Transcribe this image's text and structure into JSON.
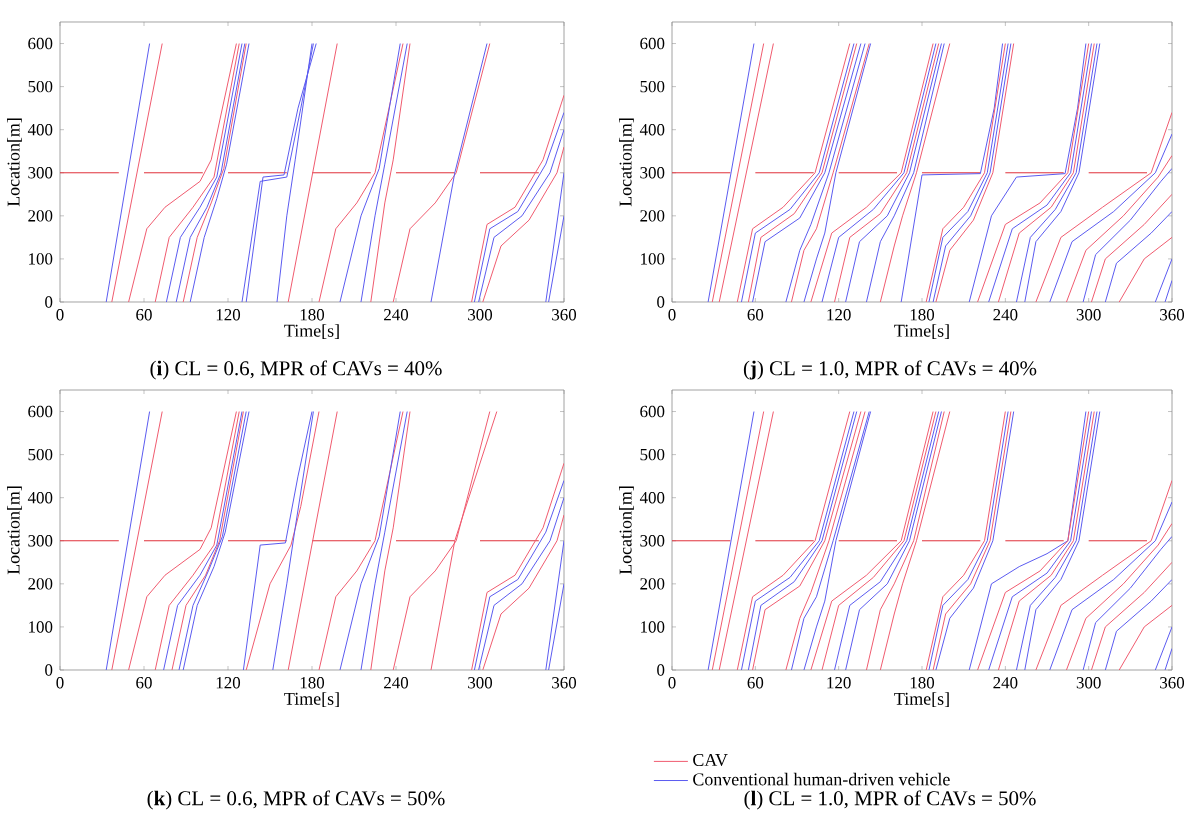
{
  "chart_data": [
    {
      "type": "line",
      "title": "(**i**) CL = 0.6, MPR of CAVs = 40%",
      "xlabel": "Time[s]",
      "ylabel": "Location[m]",
      "xlim": [
        0,
        360
      ],
      "ylim": [
        0,
        650
      ],
      "xticks": [
        0,
        60,
        120,
        180,
        240,
        300,
        360
      ],
      "yticks": [
        0,
        100,
        200,
        300,
        400,
        500,
        600
      ],
      "series": [
        {
          "color": "#e0303a",
          "x": [
            0,
            42,
            51,
            60,
            102,
            111,
            120,
            162,
            171,
            180,
            222,
            231,
            240,
            282,
            291,
            300,
            342
          ],
          "values": [
            300,
            300,
            null,
            300,
            300,
            null,
            300,
            300,
            null,
            300,
            300,
            null,
            300,
            300,
            null,
            300,
            300
          ]
        },
        {
          "color": "#5a5af0",
          "x": [
            33,
            64
          ],
          "values": [
            0,
            600
          ]
        },
        {
          "color": "#f05a6e",
          "x": [
            37,
            73
          ],
          "values": [
            0,
            600
          ]
        },
        {
          "color": "#f05a6e",
          "x": [
            49,
            62,
            75,
            100,
            108,
            126
          ],
          "values": [
            0,
            170,
            220,
            280,
            330,
            600
          ]
        },
        {
          "color": "#f05a6e",
          "x": [
            68,
            78,
            95,
            110,
            128
          ],
          "values": [
            0,
            150,
            220,
            290,
            600
          ]
        },
        {
          "color": "#5a5af0",
          "x": [
            76,
            86,
            100,
            112,
            130
          ],
          "values": [
            0,
            150,
            220,
            290,
            600
          ]
        },
        {
          "color": "#5a5af0",
          "x": [
            83,
            93,
            105,
            115,
            132
          ],
          "values": [
            0,
            150,
            220,
            300,
            600
          ]
        },
        {
          "color": "#f05a6e",
          "x": [
            88,
            98,
            108,
            117,
            133
          ],
          "values": [
            0,
            150,
            230,
            310,
            600
          ]
        },
        {
          "color": "#5a5af0",
          "x": [
            93,
            103,
            112,
            119,
            135
          ],
          "values": [
            0,
            150,
            240,
            320,
            600
          ]
        },
        {
          "color": "#5a5af0",
          "x": [
            130,
            143,
            162,
            172,
            181
          ],
          "values": [
            0,
            280,
            290,
            450,
            600
          ]
        },
        {
          "color": "#5a5af0",
          "x": [
            133,
            145,
            160,
            170,
            183
          ],
          "values": [
            0,
            290,
            295,
            450,
            600
          ]
        },
        {
          "color": "#5a5af0",
          "x": [
            155,
            162,
            168,
            180
          ],
          "values": [
            0,
            200,
            330,
            600
          ]
        },
        {
          "color": "#f05a6e",
          "x": [
            163,
            198
          ],
          "values": [
            0,
            600
          ]
        },
        {
          "color": "#f05a6e",
          "x": [
            185,
            197,
            212,
            225,
            245
          ],
          "values": [
            0,
            170,
            230,
            300,
            600
          ]
        },
        {
          "color": "#5a5af0",
          "x": [
            200,
            215,
            228,
            243
          ],
          "values": [
            0,
            200,
            310,
            600
          ]
        },
        {
          "color": "#5a5af0",
          "x": [
            215,
            225,
            232,
            248
          ],
          "values": [
            0,
            200,
            320,
            600
          ]
        },
        {
          "color": "#f05a6e",
          "x": [
            222,
            232,
            238,
            250
          ],
          "values": [
            0,
            230,
            330,
            600
          ]
        },
        {
          "color": "#f05a6e",
          "x": [
            238,
            250,
            268,
            283,
            307
          ],
          "values": [
            0,
            170,
            230,
            300,
            600
          ]
        },
        {
          "color": "#5a5af0",
          "x": [
            265,
            282,
            305
          ],
          "values": [
            0,
            300,
            600
          ]
        },
        {
          "color": "#f05a6e",
          "x": [
            294,
            305,
            325,
            345,
            360
          ],
          "values": [
            0,
            180,
            220,
            330,
            480
          ]
        },
        {
          "color": "#5a5af0",
          "x": [
            296,
            307,
            327,
            347,
            360
          ],
          "values": [
            0,
            170,
            210,
            320,
            440
          ]
        },
        {
          "color": "#5a5af0",
          "x": [
            299,
            310,
            330,
            350,
            360
          ],
          "values": [
            0,
            150,
            200,
            300,
            400
          ]
        },
        {
          "color": "#f05a6e",
          "x": [
            302,
            315,
            335,
            355,
            360
          ],
          "values": [
            0,
            130,
            190,
            300,
            360
          ]
        },
        {
          "color": "#5a5af0",
          "x": [
            347,
            360
          ],
          "values": [
            0,
            300
          ]
        },
        {
          "color": "#5a5af0",
          "x": [
            349,
            360
          ],
          "values": [
            0,
            200
          ]
        }
      ]
    },
    {
      "type": "line",
      "title": "(**j**) CL = 1.0, MPR of CAVs = 40%",
      "xlabel": "Time[s]",
      "ylabel": "Location[m]",
      "xlim": [
        0,
        360
      ],
      "ylim": [
        0,
        650
      ],
      "xticks": [
        0,
        60,
        120,
        180,
        240,
        300,
        360
      ],
      "yticks": [
        0,
        100,
        200,
        300,
        400,
        500,
        600
      ],
      "series": [
        {
          "color": "#e0303a",
          "x": [
            0,
            42,
            51,
            60,
            102,
            111,
            120,
            162,
            171,
            180,
            222,
            231,
            240,
            282,
            291,
            300,
            342
          ],
          "values": [
            300,
            300,
            null,
            300,
            300,
            null,
            300,
            300,
            null,
            300,
            300,
            null,
            300,
            300,
            null,
            300,
            300
          ]
        },
        {
          "color": "#5a5af0",
          "x": [
            26,
            59
          ],
          "values": [
            0,
            600
          ]
        },
        {
          "color": "#f05a6e",
          "x": [
            29,
            66
          ],
          "values": [
            0,
            600
          ]
        },
        {
          "color": "#f05a6e",
          "x": [
            34,
            73
          ],
          "values": [
            0,
            600
          ]
        },
        {
          "color": "#f05a6e",
          "x": [
            47,
            58,
            80,
            103,
            128
          ],
          "values": [
            0,
            170,
            220,
            300,
            600
          ]
        },
        {
          "color": "#5a5af0",
          "x": [
            50,
            60,
            85,
            106,
            131
          ],
          "values": [
            0,
            160,
            215,
            300,
            600
          ]
        },
        {
          "color": "#f05a6e",
          "x": [
            55,
            64,
            88,
            108,
            133
          ],
          "values": [
            0,
            150,
            205,
            300,
            600
          ]
        },
        {
          "color": "#5a5af0",
          "x": [
            58,
            67,
            92,
            110,
            136
          ],
          "values": [
            0,
            140,
            195,
            300,
            600
          ]
        },
        {
          "color": "#5a5af0",
          "x": [
            82,
            92,
            100,
            113,
            139
          ],
          "values": [
            0,
            120,
            180,
            300,
            600
          ]
        },
        {
          "color": "#f05a6e",
          "x": [
            86,
            95,
            104,
            116,
            142
          ],
          "values": [
            0,
            120,
            170,
            300,
            600
          ]
        },
        {
          "color": "#5a5af0",
          "x": [
            95,
            104,
            110,
            118,
            143
          ],
          "values": [
            0,
            100,
            160,
            300,
            600
          ]
        },
        {
          "color": "#f05a6e",
          "x": [
            100,
            115,
            140,
            165,
            188
          ],
          "values": [
            0,
            160,
            220,
            300,
            600
          ]
        },
        {
          "color": "#5a5af0",
          "x": [
            108,
            120,
            145,
            167,
            190
          ],
          "values": [
            0,
            150,
            215,
            300,
            600
          ]
        },
        {
          "color": "#f05a6e",
          "x": [
            117,
            128,
            150,
            169,
            192
          ],
          "values": [
            0,
            150,
            205,
            300,
            600
          ]
        },
        {
          "color": "#5a5af0",
          "x": [
            125,
            135,
            155,
            171,
            194
          ],
          "values": [
            0,
            140,
            200,
            300,
            600
          ]
        },
        {
          "color": "#5a5af0",
          "x": [
            140,
            150,
            160,
            174,
            196
          ],
          "values": [
            0,
            140,
            200,
            300,
            600
          ]
        },
        {
          "color": "#f05a6e",
          "x": [
            150,
            160,
            166,
            176,
            200
          ],
          "values": [
            0,
            130,
            200,
            300,
            600
          ]
        },
        {
          "color": "#5a5af0",
          "x": [
            165,
            180,
            222,
            232,
            238
          ],
          "values": [
            0,
            295,
            298,
            450,
            600
          ]
        },
        {
          "color": "#f05a6e",
          "x": [
            183,
            195,
            210,
            225,
            240
          ],
          "values": [
            0,
            170,
            220,
            300,
            600
          ]
        },
        {
          "color": "#5a5af0",
          "x": [
            185,
            195,
            213,
            227,
            242
          ],
          "values": [
            0,
            150,
            210,
            300,
            600
          ]
        },
        {
          "color": "#5a5af0",
          "x": [
            188,
            197,
            215,
            229,
            244
          ],
          "values": [
            0,
            130,
            200,
            300,
            600
          ]
        },
        {
          "color": "#f05a6e",
          "x": [
            190,
            200,
            217,
            231,
            246
          ],
          "values": [
            0,
            120,
            190,
            300,
            600
          ]
        },
        {
          "color": "#5a5af0",
          "x": [
            214,
            230,
            248,
            283,
            292,
            298
          ],
          "values": [
            0,
            200,
            290,
            298,
            450,
            600
          ]
        },
        {
          "color": "#f05a6e",
          "x": [
            220,
            240,
            265,
            285,
            300
          ],
          "values": [
            0,
            180,
            230,
            300,
            600
          ]
        },
        {
          "color": "#5a5af0",
          "x": [
            228,
            245,
            270,
            287,
            302
          ],
          "values": [
            0,
            170,
            225,
            300,
            600
          ]
        },
        {
          "color": "#f05a6e",
          "x": [
            235,
            250,
            273,
            289,
            304
          ],
          "values": [
            0,
            160,
            220,
            300,
            600
          ]
        },
        {
          "color": "#5a5af0",
          "x": [
            248,
            258,
            276,
            291,
            306
          ],
          "values": [
            0,
            150,
            215,
            300,
            600
          ]
        },
        {
          "color": "#5a5af0",
          "x": [
            254,
            262,
            280,
            293,
            308
          ],
          "values": [
            0,
            140,
            210,
            300,
            600
          ]
        },
        {
          "color": "#f05a6e",
          "x": [
            262,
            280,
            310,
            345,
            360
          ],
          "values": [
            0,
            150,
            220,
            300,
            440
          ]
        },
        {
          "color": "#5a5af0",
          "x": [
            272,
            288,
            318,
            348,
            360
          ],
          "values": [
            0,
            140,
            210,
            300,
            390
          ]
        },
        {
          "color": "#f05a6e",
          "x": [
            284,
            298,
            325,
            350,
            360
          ],
          "values": [
            0,
            120,
            200,
            290,
            340
          ]
        },
        {
          "color": "#5a5af0",
          "x": [
            296,
            305,
            330,
            352,
            360
          ],
          "values": [
            0,
            110,
            190,
            280,
            310
          ]
        },
        {
          "color": "#f05a6e",
          "x": [
            302,
            312,
            340,
            360
          ],
          "values": [
            0,
            100,
            180,
            250
          ]
        },
        {
          "color": "#5a5af0",
          "x": [
            312,
            320,
            345,
            360
          ],
          "values": [
            0,
            90,
            160,
            210
          ]
        },
        {
          "color": "#f05a6e",
          "x": [
            322,
            340,
            360
          ],
          "values": [
            0,
            100,
            150
          ]
        },
        {
          "color": "#5a5af0",
          "x": [
            348,
            360
          ],
          "values": [
            0,
            100
          ]
        },
        {
          "color": "#5a5af0",
          "x": [
            355,
            360
          ],
          "values": [
            0,
            50
          ]
        }
      ]
    },
    {
      "type": "line",
      "title": "(**k**) CL = 0.6, MPR of CAVs = 50%",
      "xlabel": "Time[s]",
      "ylabel": "Location[m]",
      "xlim": [
        0,
        360
      ],
      "ylim": [
        0,
        650
      ],
      "xticks": [
        0,
        60,
        120,
        180,
        240,
        300,
        360
      ],
      "yticks": [
        0,
        100,
        200,
        300,
        400,
        500,
        600
      ],
      "series": [
        {
          "color": "#e0303a",
          "x": [
            0,
            42,
            51,
            60,
            102,
            111,
            120,
            162,
            171,
            180,
            222,
            231,
            240,
            282,
            291,
            300,
            342
          ],
          "values": [
            300,
            300,
            null,
            300,
            300,
            null,
            300,
            300,
            null,
            300,
            300,
            null,
            300,
            300,
            null,
            300,
            300
          ]
        },
        {
          "color": "#5a5af0",
          "x": [
            33,
            64
          ],
          "values": [
            0,
            600
          ]
        },
        {
          "color": "#f05a6e",
          "x": [
            37,
            73
          ],
          "values": [
            0,
            600
          ]
        },
        {
          "color": "#f05a6e",
          "x": [
            49,
            62,
            75,
            100,
            108,
            126
          ],
          "values": [
            0,
            170,
            220,
            280,
            330,
            600
          ]
        },
        {
          "color": "#f05a6e",
          "x": [
            68,
            78,
            95,
            110,
            128
          ],
          "values": [
            0,
            150,
            220,
            290,
            600
          ]
        },
        {
          "color": "#5a5af0",
          "x": [
            74,
            84,
            100,
            112,
            130
          ],
          "values": [
            0,
            150,
            220,
            290,
            600
          ]
        },
        {
          "color": "#f05a6e",
          "x": [
            80,
            90,
            104,
            114,
            131
          ],
          "values": [
            0,
            150,
            220,
            300,
            600
          ]
        },
        {
          "color": "#5a5af0",
          "x": [
            85,
            95,
            106,
            116,
            133
          ],
          "values": [
            0,
            150,
            230,
            310,
            600
          ]
        },
        {
          "color": "#5a5af0",
          "x": [
            88,
            98,
            110,
            118,
            135
          ],
          "values": [
            0,
            150,
            240,
            320,
            600
          ]
        },
        {
          "color": "#5a5af0",
          "x": [
            131,
            143,
            161,
            170,
            180
          ],
          "values": [
            0,
            290,
            295,
            450,
            600
          ]
        },
        {
          "color": "#f05a6e",
          "x": [
            133,
            150,
            165,
            172,
            185
          ],
          "values": [
            0,
            200,
            290,
            380,
            600
          ]
        },
        {
          "color": "#5a5af0",
          "x": [
            152,
            162,
            168,
            181
          ],
          "values": [
            0,
            200,
            330,
            600
          ]
        },
        {
          "color": "#f05a6e",
          "x": [
            163,
            198
          ],
          "values": [
            0,
            600
          ]
        },
        {
          "color": "#f05a6e",
          "x": [
            185,
            197,
            212,
            225,
            245
          ],
          "values": [
            0,
            170,
            230,
            300,
            600
          ]
        },
        {
          "color": "#5a5af0",
          "x": [
            200,
            215,
            228,
            243
          ],
          "values": [
            0,
            200,
            310,
            600
          ]
        },
        {
          "color": "#5a5af0",
          "x": [
            215,
            225,
            232,
            248
          ],
          "values": [
            0,
            200,
            320,
            600
          ]
        },
        {
          "color": "#f05a6e",
          "x": [
            222,
            232,
            238,
            250
          ],
          "values": [
            0,
            230,
            330,
            600
          ]
        },
        {
          "color": "#f05a6e",
          "x": [
            238,
            250,
            268,
            283,
            307
          ],
          "values": [
            0,
            170,
            230,
            300,
            600
          ]
        },
        {
          "color": "#f05a6e",
          "x": [
            265,
            282,
            312
          ],
          "values": [
            0,
            300,
            600
          ]
        },
        {
          "color": "#f05a6e",
          "x": [
            294,
            305,
            325,
            345,
            360
          ],
          "values": [
            0,
            180,
            220,
            330,
            480
          ]
        },
        {
          "color": "#5a5af0",
          "x": [
            296,
            307,
            327,
            347,
            360
          ],
          "values": [
            0,
            170,
            210,
            320,
            440
          ]
        },
        {
          "color": "#5a5af0",
          "x": [
            299,
            310,
            330,
            350,
            360
          ],
          "values": [
            0,
            150,
            200,
            300,
            400
          ]
        },
        {
          "color": "#f05a6e",
          "x": [
            302,
            315,
            335,
            355,
            360
          ],
          "values": [
            0,
            130,
            190,
            300,
            360
          ]
        },
        {
          "color": "#5a5af0",
          "x": [
            347,
            360
          ],
          "values": [
            0,
            300
          ]
        },
        {
          "color": "#5a5af0",
          "x": [
            349,
            360
          ],
          "values": [
            0,
            200
          ]
        }
      ]
    },
    {
      "type": "line",
      "title": "(**l**) CL = 1.0, MPR of CAVs = 50%",
      "xlabel": "Time[s]",
      "ylabel": "Location[m]",
      "xlim": [
        0,
        360
      ],
      "ylim": [
        0,
        650
      ],
      "xticks": [
        0,
        60,
        120,
        180,
        240,
        300,
        360
      ],
      "yticks": [
        0,
        100,
        200,
        300,
        400,
        500,
        600
      ],
      "legend": "bottom",
      "series": [
        {
          "color": "#e0303a",
          "x": [
            0,
            42,
            51,
            60,
            102,
            111,
            120,
            162,
            171,
            180,
            222,
            231,
            240,
            282,
            291,
            300,
            342
          ],
          "values": [
            300,
            300,
            null,
            300,
            300,
            null,
            300,
            300,
            null,
            300,
            300,
            null,
            300,
            300,
            null,
            300,
            300
          ]
        },
        {
          "color": "#5a5af0",
          "x": [
            26,
            59
          ],
          "values": [
            0,
            600
          ]
        },
        {
          "name": "CAV",
          "color": "#f05a6e",
          "x": [
            29,
            66
          ],
          "values": [
            0,
            600
          ]
        },
        {
          "color": "#f05a6e",
          "x": [
            34,
            73
          ],
          "values": [
            0,
            600
          ]
        },
        {
          "color": "#f05a6e",
          "x": [
            47,
            58,
            80,
            103,
            128
          ],
          "values": [
            0,
            170,
            220,
            300,
            600
          ]
        },
        {
          "name": "Conventional human-driven vehicle",
          "color": "#5a5af0",
          "x": [
            50,
            60,
            85,
            106,
            131
          ],
          "values": [
            0,
            160,
            215,
            300,
            600
          ]
        },
        {
          "color": "#5a5af0",
          "x": [
            55,
            64,
            88,
            108,
            133
          ],
          "values": [
            0,
            150,
            205,
            300,
            600
          ]
        },
        {
          "color": "#f05a6e",
          "x": [
            58,
            67,
            92,
            110,
            136
          ],
          "values": [
            0,
            140,
            195,
            300,
            600
          ]
        },
        {
          "color": "#f05a6e",
          "x": [
            82,
            92,
            100,
            113,
            139
          ],
          "values": [
            0,
            120,
            180,
            300,
            600
          ]
        },
        {
          "color": "#5a5af0",
          "x": [
            86,
            95,
            104,
            116,
            142
          ],
          "values": [
            0,
            120,
            170,
            300,
            600
          ]
        },
        {
          "color": "#5a5af0",
          "x": [
            95,
            104,
            110,
            118,
            143
          ],
          "values": [
            0,
            100,
            160,
            300,
            600
          ]
        },
        {
          "color": "#f05a6e",
          "x": [
            100,
            115,
            140,
            165,
            188
          ],
          "values": [
            0,
            160,
            220,
            300,
            600
          ]
        },
        {
          "color": "#f05a6e",
          "x": [
            108,
            120,
            145,
            167,
            190
          ],
          "values": [
            0,
            150,
            215,
            300,
            600
          ]
        },
        {
          "color": "#5a5af0",
          "x": [
            117,
            128,
            150,
            169,
            192
          ],
          "values": [
            0,
            150,
            205,
            300,
            600
          ]
        },
        {
          "color": "#5a5af0",
          "x": [
            125,
            135,
            155,
            171,
            194
          ],
          "values": [
            0,
            140,
            200,
            300,
            600
          ]
        },
        {
          "color": "#f05a6e",
          "x": [
            140,
            150,
            160,
            174,
            196
          ],
          "values": [
            0,
            140,
            200,
            300,
            600
          ]
        },
        {
          "color": "#f05a6e",
          "x": [
            150,
            160,
            166,
            176,
            200
          ],
          "values": [
            0,
            130,
            200,
            300,
            600
          ]
        },
        {
          "color": "#f05a6e",
          "x": [
            183,
            195,
            210,
            225,
            240
          ],
          "values": [
            0,
            170,
            220,
            300,
            600
          ]
        },
        {
          "color": "#5a5af0",
          "x": [
            185,
            195,
            213,
            227,
            242
          ],
          "values": [
            0,
            150,
            210,
            300,
            600
          ]
        },
        {
          "color": "#f05a6e",
          "x": [
            188,
            197,
            215,
            229,
            244
          ],
          "values": [
            0,
            130,
            200,
            300,
            600
          ]
        },
        {
          "color": "#5a5af0",
          "x": [
            190,
            200,
            217,
            231,
            246
          ],
          "values": [
            0,
            120,
            190,
            300,
            600
          ]
        },
        {
          "color": "#5a5af0",
          "x": [
            214,
            230,
            250,
            270,
            285,
            298
          ],
          "values": [
            0,
            200,
            240,
            270,
            300,
            600
          ]
        },
        {
          "color": "#f05a6e",
          "x": [
            220,
            240,
            265,
            285,
            300
          ],
          "values": [
            0,
            180,
            230,
            300,
            600
          ]
        },
        {
          "color": "#5a5af0",
          "x": [
            228,
            245,
            270,
            287,
            302
          ],
          "values": [
            0,
            170,
            225,
            300,
            600
          ]
        },
        {
          "color": "#f05a6e",
          "x": [
            235,
            250,
            273,
            289,
            304
          ],
          "values": [
            0,
            160,
            220,
            300,
            600
          ]
        },
        {
          "color": "#5a5af0",
          "x": [
            248,
            258,
            276,
            291,
            306
          ],
          "values": [
            0,
            150,
            215,
            300,
            600
          ]
        },
        {
          "color": "#5a5af0",
          "x": [
            254,
            262,
            280,
            293,
            308
          ],
          "values": [
            0,
            140,
            210,
            300,
            600
          ]
        },
        {
          "color": "#f05a6e",
          "x": [
            262,
            280,
            310,
            345,
            360
          ],
          "values": [
            0,
            150,
            220,
            300,
            440
          ]
        },
        {
          "color": "#5a5af0",
          "x": [
            272,
            288,
            318,
            348,
            360
          ],
          "values": [
            0,
            140,
            210,
            300,
            390
          ]
        },
        {
          "color": "#f05a6e",
          "x": [
            284,
            298,
            325,
            350,
            360
          ],
          "values": [
            0,
            120,
            200,
            290,
            340
          ]
        },
        {
          "color": "#5a5af0",
          "x": [
            296,
            305,
            330,
            352,
            360
          ],
          "values": [
            0,
            110,
            190,
            280,
            310
          ]
        },
        {
          "color": "#f05a6e",
          "x": [
            302,
            312,
            340,
            360
          ],
          "values": [
            0,
            100,
            180,
            250
          ]
        },
        {
          "color": "#5a5af0",
          "x": [
            312,
            320,
            345,
            360
          ],
          "values": [
            0,
            90,
            160,
            210
          ]
        },
        {
          "color": "#f05a6e",
          "x": [
            322,
            340,
            360
          ],
          "values": [
            0,
            100,
            150
          ]
        },
        {
          "color": "#5a5af0",
          "x": [
            348,
            360
          ],
          "values": [
            0,
            100
          ]
        },
        {
          "color": "#5a5af0",
          "x": [
            355,
            360
          ],
          "values": [
            0,
            50
          ]
        }
      ]
    }
  ]
}
